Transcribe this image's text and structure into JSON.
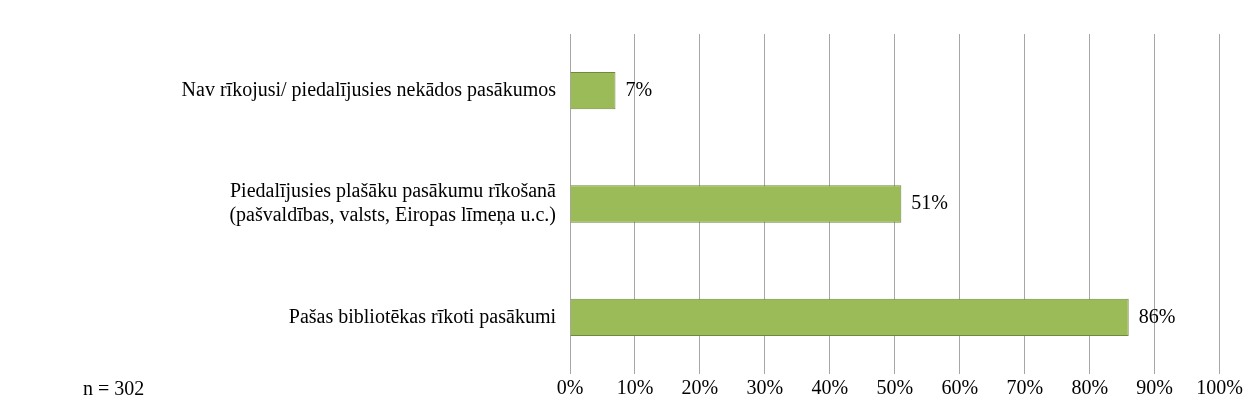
{
  "chart_data": {
    "type": "bar",
    "orientation": "horizontal",
    "categories": [
      "Nav rīkojusi/ piedalījusies nekādos pasākumos",
      "Piedalījusies plašāku pasākumu rīkošanā\n(pašvaldības, valsts, Eiropas līmeņa u.c.)",
      "Pašas bibliotēkas rīkoti pasākumi"
    ],
    "values": [
      7,
      51,
      86
    ],
    "value_labels": [
      "7%",
      "51%",
      "86%"
    ],
    "color": "#9bbb59",
    "xlim": [
      0,
      100
    ],
    "xticks": [
      {
        "value": 0,
        "label": "0%"
      },
      {
        "value": 10,
        "label": "10%"
      },
      {
        "value": 20,
        "label": "20%"
      },
      {
        "value": 30,
        "label": "30%"
      },
      {
        "value": 40,
        "label": "40%"
      },
      {
        "value": 50,
        "label": "50%"
      },
      {
        "value": 60,
        "label": "60%"
      },
      {
        "value": 70,
        "label": "70%"
      },
      {
        "value": 80,
        "label": "80%"
      },
      {
        "value": 90,
        "label": "90%"
      },
      {
        "value": 100,
        "label": "100%"
      }
    ],
    "grid": "x",
    "annotations": [
      "n = 302"
    ]
  }
}
